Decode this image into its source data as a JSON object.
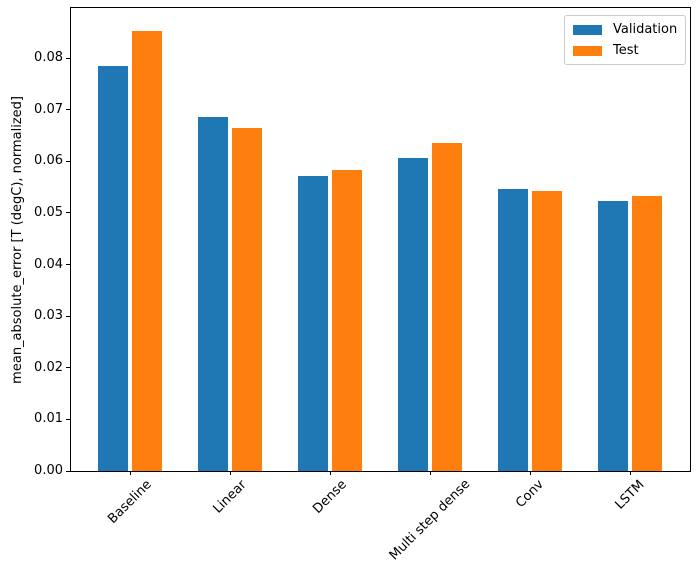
{
  "chart_data": {
    "type": "bar",
    "title": "",
    "xlabel": "",
    "ylabel": "mean_absolute_error [T (degC), normalized]",
    "categories": [
      "Baseline",
      "Linear",
      "Dense",
      "Multi step dense",
      "Conv",
      "LSTM"
    ],
    "series": [
      {
        "name": "Validation",
        "color": "#1f77b4",
        "values": [
          0.0785,
          0.0686,
          0.0572,
          0.0606,
          0.0546,
          0.0524
        ]
      },
      {
        "name": "Test",
        "color": "#ff7f0e",
        "values": [
          0.0852,
          0.0664,
          0.0583,
          0.0635,
          0.0543,
          0.0533
        ]
      }
    ],
    "ylim": [
      0,
      0.0897
    ],
    "ytick_labels": [
      "0.00",
      "0.01",
      "0.02",
      "0.03",
      "0.04",
      "0.05",
      "0.06",
      "0.07",
      "0.08"
    ],
    "xtick_rotation_deg": 45,
    "bar_width_fraction": 0.3,
    "bar_offset_fraction": 0.17,
    "grid": false,
    "legend": {
      "position": "upper right",
      "entries": [
        "Validation",
        "Test"
      ]
    },
    "colors": {
      "axes": "#000000",
      "background": "#ffffff",
      "legend_border": "#cccccc"
    }
  }
}
